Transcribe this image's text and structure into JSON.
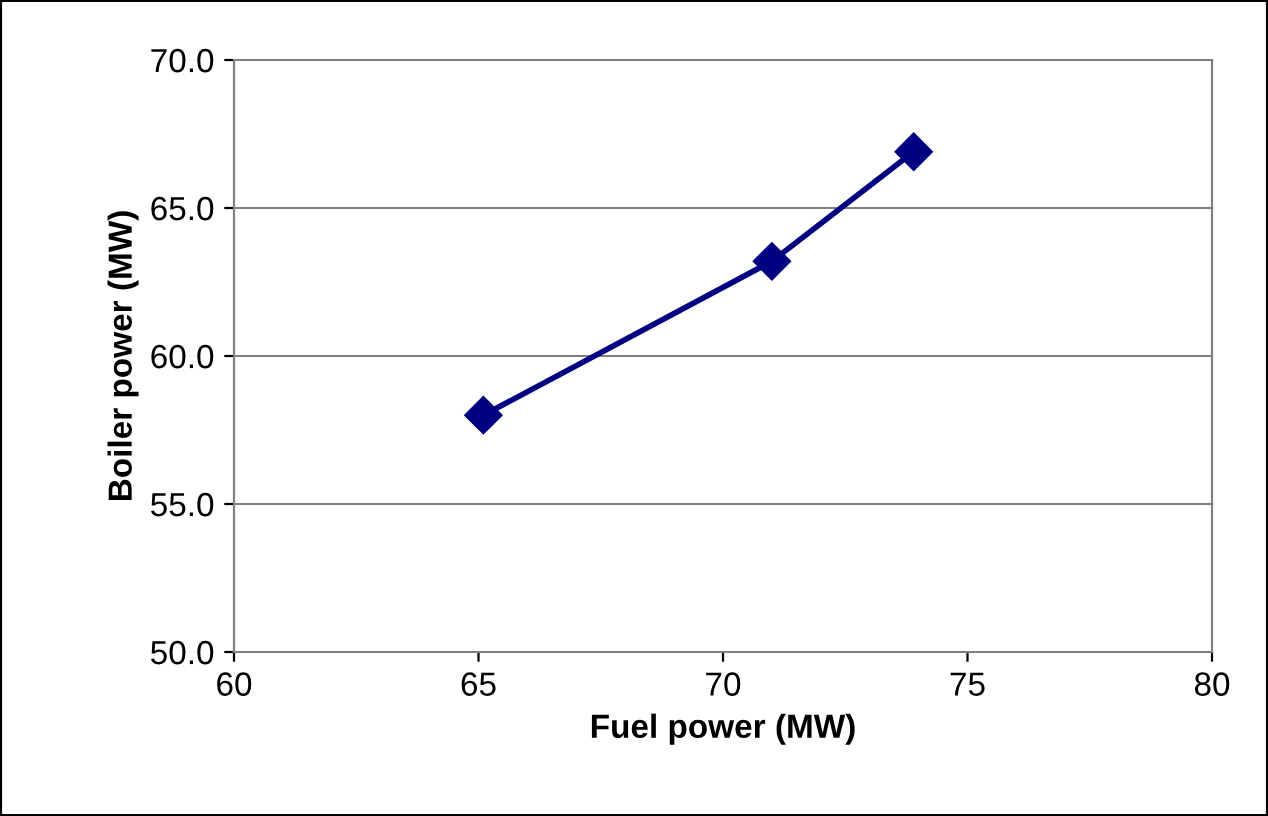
{
  "chart_data": {
    "type": "line",
    "xlabel": "Fuel power (MW)",
    "ylabel": "Boiler power (MW)",
    "x": [
      65.1,
      71.0,
      73.9
    ],
    "series": [
      {
        "color": "#000080",
        "values": [
          58.0,
          63.2,
          66.9
        ]
      }
    ],
    "xlim": [
      60,
      80
    ],
    "xticks": [
      60,
      65,
      70,
      75,
      80
    ],
    "ylim": [
      50,
      70
    ],
    "yticks": [
      {
        "value": 50,
        "label": "50.0"
      },
      {
        "value": 55,
        "label": "55.0"
      },
      {
        "value": 60,
        "label": "60.0"
      },
      {
        "value": 65,
        "label": "65.0"
      },
      {
        "value": 70,
        "label": "70.0"
      }
    ],
    "grid": "y",
    "marker": "diamond",
    "line_style": "solid"
  }
}
